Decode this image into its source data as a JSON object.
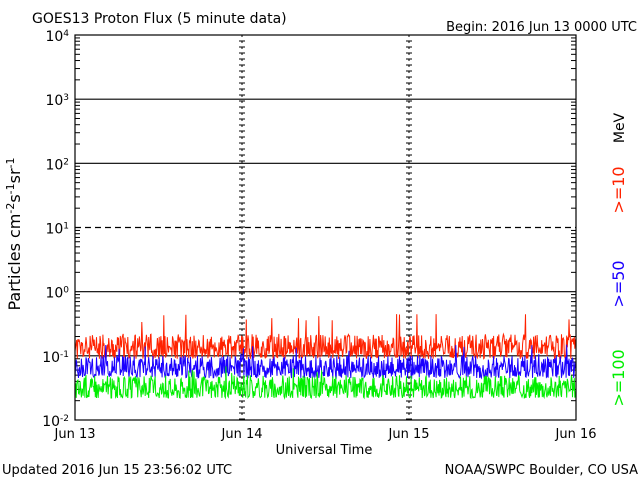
{
  "header": {
    "title": "GOES13 Proton Flux (5 minute data)",
    "begin": "Begin: 2016 Jun 13 0000 UTC"
  },
  "footer": {
    "updated": "Updated 2016 Jun 15 23:56:02 UTC",
    "credit": "NOAA/SWPC Boulder, CO USA"
  },
  "colors": {
    "ge10": "#ff2200",
    "ge50": "#1a00ff",
    "ge100": "#00ee00",
    "axis": "#000000"
  },
  "chart_data": {
    "type": "line",
    "title": "GOES13 Proton Flux (5 minute data)",
    "xlabel": "Universal Time",
    "ylabel": "Particles cm-2s-1sr-1",
    "yscale": "log",
    "ylim": [
      0.01,
      10000
    ],
    "xlim": [
      "2016-06-13",
      "2016-06-16"
    ],
    "x_ticks": [
      "Jun 13",
      "Jun 14",
      "Jun 15",
      "Jun 16"
    ],
    "y_ticks": [
      {
        "base": "10",
        "exp": "-2"
      },
      {
        "base": "10",
        "exp": "-1"
      },
      {
        "base": "10",
        "exp": "0"
      },
      {
        "base": "10",
        "exp": "1"
      },
      {
        "base": "10",
        "exp": "2"
      },
      {
        "base": "10",
        "exp": "3"
      },
      {
        "base": "10",
        "exp": "4"
      }
    ],
    "grid": {
      "solid_levels": [
        0.1,
        1,
        100,
        1000
      ],
      "dashed_levels": [
        10
      ],
      "vertical_dashed_at_days": true
    },
    "units_label": "MeV",
    "series": [
      {
        "name": ">=10",
        "color_key": "ge10",
        "typical_min": 0.09,
        "typical_max": 0.22,
        "peak": 0.45
      },
      {
        "name": ">=50",
        "color_key": "ge50",
        "typical_min": 0.045,
        "typical_max": 0.1,
        "peak": 0.15
      },
      {
        "name": ">=100",
        "color_key": "ge100",
        "typical_min": 0.022,
        "typical_max": 0.05,
        "peak": 0.07
      }
    ]
  }
}
